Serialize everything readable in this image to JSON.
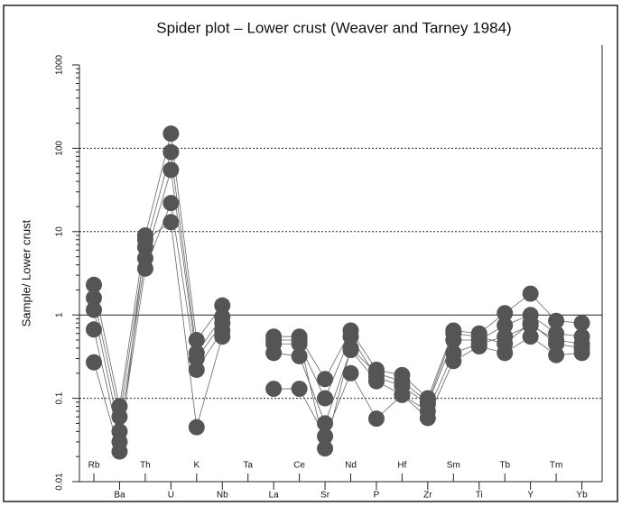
{
  "chart_data": {
    "type": "line",
    "title": "Spider plot – Lower crust (Weaver  and  Tarney 1984)",
    "y_label": "Sample/ Lower crust",
    "log_y": true,
    "grid": true,
    "hline": 1,
    "categories": [
      "Rb",
      "Ba",
      "Th",
      "U",
      "K",
      "Nb",
      "Ta",
      "La",
      "Ce",
      "Sr",
      "Nd",
      "P",
      "Hf",
      "Zr",
      "Sm",
      "Ti",
      "Tb",
      "Y",
      "Tm",
      "Yb"
    ],
    "ylim": [
      0.01,
      1000
    ],
    "yticks": [
      0.01,
      0.1,
      1,
      10,
      100,
      1000
    ],
    "series": [
      {
        "color": "#555555",
        "values": [
          2.3,
          0.08,
          9,
          150,
          0.5,
          1.3,
          null,
          0.55,
          0.55,
          0.17,
          0.65,
          0.22,
          0.19,
          0.1,
          0.65,
          0.6,
          1.05,
          1.8,
          0.85,
          0.8
        ]
      },
      {
        "color": "#555555",
        "values": [
          1.6,
          0.06,
          6.5,
          90,
          0.35,
          0.95,
          null,
          0.45,
          0.45,
          0.1,
          0.55,
          0.18,
          0.14,
          0.085,
          0.5,
          0.5,
          0.75,
          1.0,
          0.6,
          0.55
        ]
      },
      {
        "color": "#555555",
        "values": [
          1.15,
          0.04,
          4.8,
          55,
          0.3,
          0.8,
          null,
          0.35,
          0.32,
          0.05,
          0.38,
          0.16,
          0.11,
          0.07,
          0.35,
          0.45,
          0.55,
          0.75,
          0.5,
          0.45
        ]
      },
      {
        "color": "#555555",
        "values": [
          0.67,
          0.03,
          3.6,
          22,
          0.22,
          0.65,
          null,
          0.13,
          0.13,
          0.035,
          0.2,
          0.057,
          0.11,
          0.058,
          0.28,
          0.42,
          0.35,
          0.55,
          0.33,
          0.35
        ]
      },
      {
        "color": "#555555",
        "values": [
          0.27,
          0.023,
          8,
          13,
          0.045,
          0.55,
          null,
          0.5,
          0.5,
          0.025,
          0.4,
          0.2,
          0.16,
          0.09,
          0.6,
          0.55,
          0.45,
          0.8,
          0.45,
          0.4
        ]
      }
    ]
  }
}
